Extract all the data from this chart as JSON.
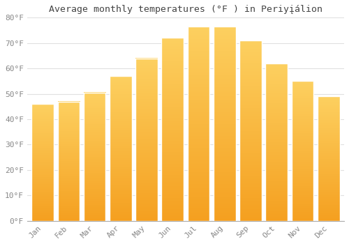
{
  "title": "Average monthly temperatures (°F ) in Periyįálion",
  "months": [
    "Jan",
    "Feb",
    "Mar",
    "Apr",
    "May",
    "Jun",
    "Jul",
    "Aug",
    "Sep",
    "Oct",
    "Nov",
    "Dec"
  ],
  "values": [
    46,
    47,
    50.5,
    57,
    64,
    72,
    76.5,
    76.5,
    71,
    62,
    55,
    49
  ],
  "bar_color_top": "#FDB813",
  "bar_color_bottom": "#F5A623",
  "bar_edge_color": "#FFFFFF",
  "background_color": "#FFFFFF",
  "grid_color": "#E0E0E0",
  "text_color": "#888888",
  "title_color": "#444444",
  "ylim": [
    0,
    80
  ],
  "yticks": [
    0,
    10,
    20,
    30,
    40,
    50,
    60,
    70,
    80
  ],
  "title_fontsize": 9.5,
  "tick_fontsize": 8,
  "bar_width": 0.85
}
